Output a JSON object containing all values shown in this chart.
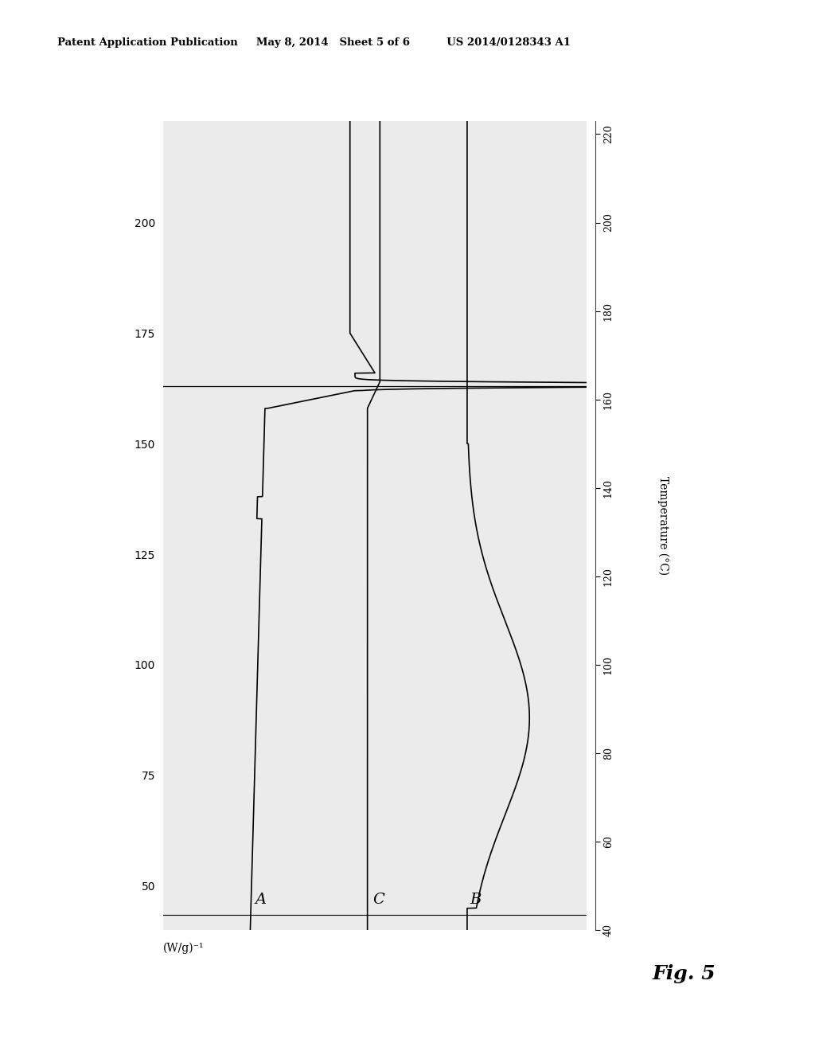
{
  "background_color": "#ffffff",
  "plot_bg_color": "#ebebeb",
  "header": "Patent Application Publication     May 8, 2014   Sheet 5 of 6          US 2014/0128343 A1",
  "fig_label": "Fig. 5",
  "temp_label": "Temperature (°C)",
  "heat_label": "(W/g)⁻¹",
  "temp_min": 40,
  "temp_max": 220,
  "temp_ticks": [
    40,
    60,
    80,
    100,
    120,
    140,
    160,
    180,
    200,
    220
  ],
  "ref_line_temp": 163,
  "label_A": "A",
  "label_B": "B",
  "label_C": "C",
  "line_color": "#000000",
  "line_width": 1.2,
  "fig_width": 10.24,
  "fig_height": 13.2
}
